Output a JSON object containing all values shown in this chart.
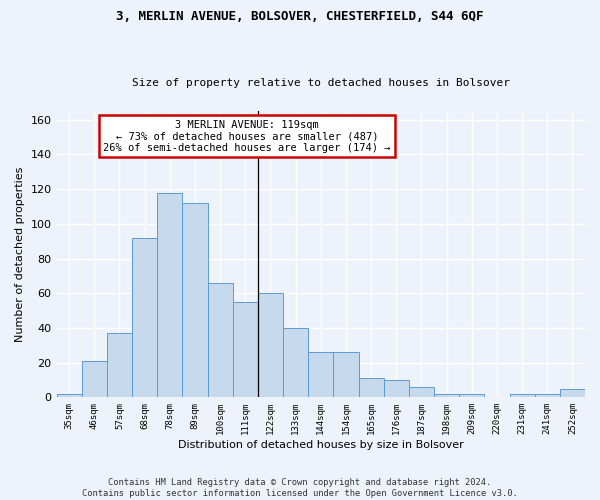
{
  "title1": "3, MERLIN AVENUE, BOLSOVER, CHESTERFIELD, S44 6QF",
  "title2": "Size of property relative to detached houses in Bolsover",
  "xlabel": "Distribution of detached houses by size in Bolsover",
  "ylabel": "Number of detached properties",
  "categories": [
    "35sqm",
    "46sqm",
    "57sqm",
    "68sqm",
    "78sqm",
    "89sqm",
    "100sqm",
    "111sqm",
    "122sqm",
    "133sqm",
    "144sqm",
    "154sqm",
    "165sqm",
    "176sqm",
    "187sqm",
    "198sqm",
    "209sqm",
    "220sqm",
    "231sqm",
    "241sqm",
    "252sqm"
  ],
  "values": [
    2,
    21,
    37,
    92,
    118,
    112,
    66,
    55,
    60,
    40,
    26,
    26,
    11,
    10,
    6,
    2,
    2,
    0,
    2,
    2,
    5
  ],
  "bar_color": "#c6d9ed",
  "bar_edge_color": "#5b9bd5",
  "annotation_text": "3 MERLIN AVENUE: 119sqm\n← 73% of detached houses are smaller (487)\n26% of semi-detached houses are larger (174) →",
  "vline_x_index": 7,
  "annotation_box_edge": "#cc0000",
  "ylim": [
    0,
    165
  ],
  "yticks": [
    0,
    20,
    40,
    60,
    80,
    100,
    120,
    140,
    160
  ],
  "footer": "Contains HM Land Registry data © Crown copyright and database right 2024.\nContains public sector information licensed under the Open Government Licence v3.0.",
  "bg_color": "#eef2fa",
  "grid_color": "#ffffff",
  "title1_fontsize": 9,
  "title2_fontsize": 8
}
